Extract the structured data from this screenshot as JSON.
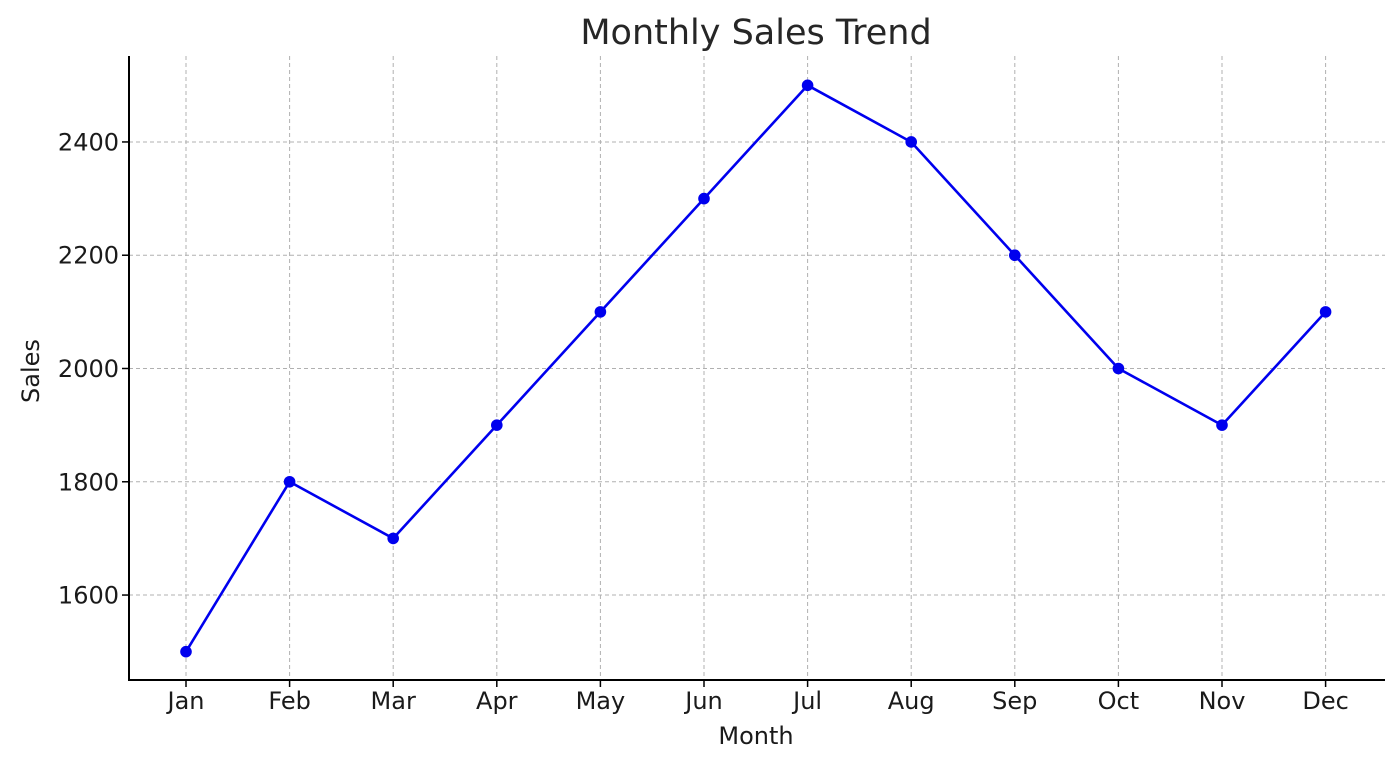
{
  "chart_data": {
    "type": "line",
    "title": "Monthly Sales Trend",
    "xlabel": "Month",
    "ylabel": "Sales",
    "categories": [
      "Jan",
      "Feb",
      "Mar",
      "Apr",
      "May",
      "Jun",
      "Jul",
      "Aug",
      "Sep",
      "Oct",
      "Nov",
      "Dec"
    ],
    "series": [
      {
        "values": [
          1500,
          1800,
          1700,
          1900,
          2100,
          2300,
          2500,
          2400,
          2200,
          2000,
          1900,
          2100
        ],
        "color": "#0000ee",
        "marker": "circle"
      }
    ],
    "yticks": [
      1600,
      1800,
      2000,
      2200,
      2400
    ],
    "ylim": [
      1450,
      2550
    ],
    "grid": true,
    "grid_style": "dashed",
    "legend": "none"
  }
}
